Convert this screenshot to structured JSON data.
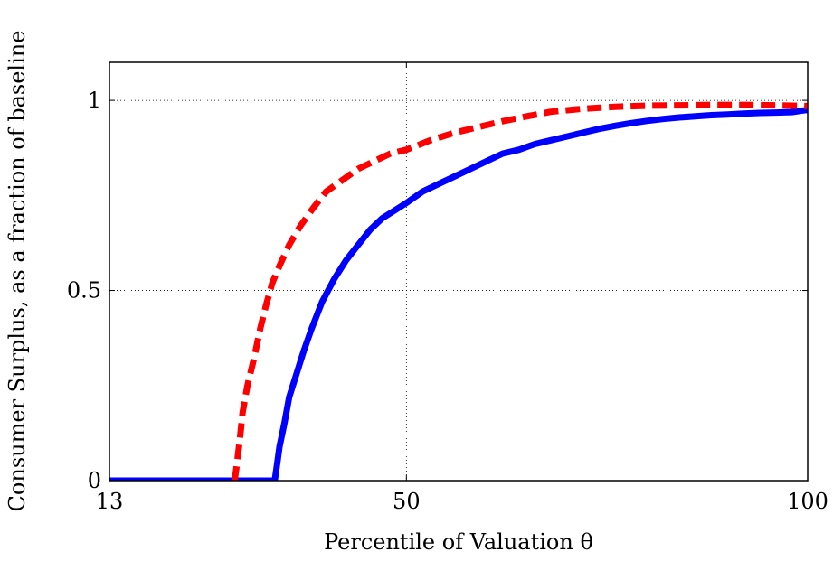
{
  "chart_data": {
    "type": "line",
    "title": "",
    "xlabel": "Percentile of Valuation θ",
    "ylabel": "Consumer Surplus, as a fraction of baseline",
    "xlim": [
      13,
      100
    ],
    "ylim": [
      0,
      1.1
    ],
    "x_ticks": [
      13,
      50,
      100
    ],
    "x_tick_labels": [
      "13",
      "50",
      "100"
    ],
    "y_ticks": [
      0,
      0.5,
      1
    ],
    "y_tick_labels": [
      "0",
      "0.5",
      "1"
    ],
    "grid": true,
    "series": [
      {
        "style": "solid",
        "color": "#0000ff",
        "x": [
          13,
          33.6,
          33.8,
          34.2,
          34.8,
          35.4,
          36.3,
          37.2,
          38.2,
          39.5,
          41.0,
          42.5,
          44.0,
          45.5,
          47.0,
          48.5,
          50.0,
          52,
          54,
          56,
          58,
          60,
          62,
          64,
          66,
          68,
          70,
          72,
          74,
          76,
          78,
          80,
          82,
          84,
          86,
          88,
          90,
          92,
          94,
          96,
          98,
          100
        ],
        "y": [
          0,
          0,
          0.03,
          0.09,
          0.15,
          0.22,
          0.28,
          0.34,
          0.4,
          0.47,
          0.53,
          0.58,
          0.62,
          0.66,
          0.69,
          0.71,
          0.73,
          0.76,
          0.78,
          0.8,
          0.82,
          0.84,
          0.86,
          0.87,
          0.885,
          0.895,
          0.905,
          0.915,
          0.925,
          0.933,
          0.94,
          0.946,
          0.951,
          0.955,
          0.958,
          0.961,
          0.963,
          0.965,
          0.967,
          0.968,
          0.969,
          0.975
        ]
      },
      {
        "style": "dashed",
        "color": "#ff0000",
        "x": [
          28.6,
          28.8,
          29.2,
          29.6,
          30.2,
          31.0,
          31.8,
          32.5,
          33.3,
          34.3,
          35.4,
          36.8,
          38.5,
          40.0,
          42.0,
          44.0,
          46.0,
          48.0,
          50.0,
          53,
          56,
          59,
          62,
          65,
          68,
          72,
          76,
          80,
          84,
          88,
          92,
          96,
          100
        ],
        "y": [
          0,
          0.03,
          0.1,
          0.18,
          0.25,
          0.32,
          0.4,
          0.46,
          0.52,
          0.57,
          0.62,
          0.67,
          0.72,
          0.76,
          0.79,
          0.82,
          0.84,
          0.86,
          0.87,
          0.895,
          0.915,
          0.93,
          0.945,
          0.958,
          0.97,
          0.978,
          0.983,
          0.986,
          0.987,
          0.988,
          0.988,
          0.987,
          0.985
        ]
      }
    ]
  }
}
